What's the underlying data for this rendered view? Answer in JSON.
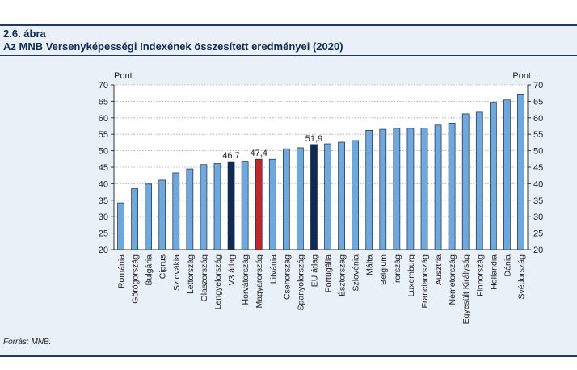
{
  "figure": {
    "number": "2.6. ábra",
    "title": "Az MNB Versenyképességi Indexének összesített eredményei (2020)",
    "source": "Forrás: MNB."
  },
  "chart_data": {
    "type": "bar",
    "title": "Az MNB Versenyképességi Indexének összesített eredményei (2020)",
    "ylabel_left": "Pont",
    "ylabel_right": "Pont",
    "ylim": [
      20,
      70
    ],
    "yticks": [
      20,
      25,
      30,
      35,
      40,
      45,
      50,
      55,
      60,
      65,
      70
    ],
    "grid": true,
    "categories": [
      "Románia",
      "Görögország",
      "Bulgária",
      "Ciprus",
      "Szlovákia",
      "Lettország",
      "Olaszország",
      "Lengyelország",
      "V3 átlag",
      "Horvátország",
      "Magyarország",
      "Litvánia",
      "Csehország",
      "Spanyolország",
      "EU átlag",
      "Portugália",
      "Észtország",
      "Szlovénia",
      "Málta",
      "Belgium",
      "Írország",
      "Luxemburg",
      "Franciaország",
      "Ausztria",
      "Németország",
      "Egyesült Királyság",
      "Finnország",
      "Hollandia",
      "Dánia",
      "Svédország"
    ],
    "values": [
      34.2,
      38.5,
      39.9,
      41.1,
      43.3,
      44.5,
      45.8,
      46.1,
      46.7,
      46.8,
      47.4,
      47.4,
      50.6,
      50.9,
      51.9,
      52.1,
      52.6,
      53.1,
      56.2,
      56.5,
      56.8,
      56.8,
      56.9,
      57.8,
      58.4,
      61.2,
      61.7,
      64.7,
      65.4,
      67.2
    ],
    "data_labels": [
      {
        "category": "V3 átlag",
        "text": "46,7"
      },
      {
        "category": "Magyarország",
        "text": "47,4"
      },
      {
        "category": "EU átlag",
        "text": "51,9"
      }
    ],
    "colors": {
      "default": "#6fa8dc",
      "average": "#0f2a55",
      "highlight": "#c0282d",
      "edge": "#1a2a44"
    },
    "bar_roles": {
      "V3 átlag": "average",
      "EU átlag": "average",
      "Magyarország": "highlight"
    }
  }
}
